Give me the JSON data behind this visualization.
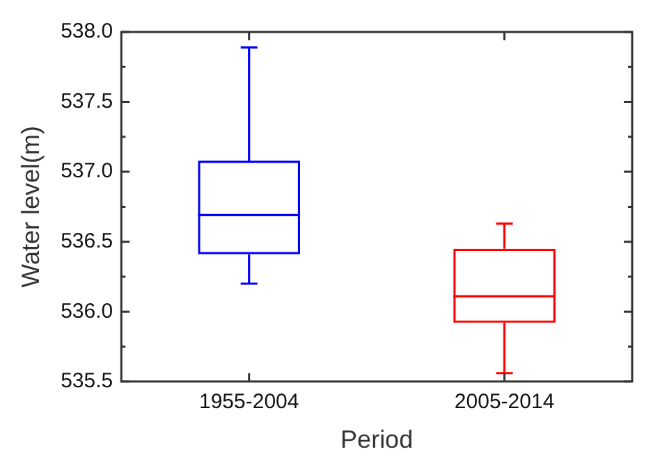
{
  "chart_data": {
    "type": "box",
    "xlabel": "Period",
    "ylabel": "Water level(m)",
    "categories": [
      "1955-2004",
      "2005-2014"
    ],
    "boxes": [
      {
        "low": 536.2,
        "q1": 536.41,
        "median": 536.69,
        "q3": 537.08,
        "high": 537.89
      },
      {
        "low": 535.56,
        "q1": 535.92,
        "median": 536.11,
        "q3": 536.45,
        "high": 536.63
      }
    ],
    "colors": [
      "#0000ff",
      "#ff0000"
    ],
    "ylim": [
      535.5,
      538.0
    ],
    "yticks": [
      {
        "value": 535.5,
        "label": "535.5"
      },
      {
        "value": 536.0,
        "label": "536.0"
      },
      {
        "value": 536.5,
        "label": "536.5"
      },
      {
        "value": 537.0,
        "label": "537.0"
      },
      {
        "value": 537.5,
        "label": "537.5"
      },
      {
        "value": 538.0,
        "label": "538.0"
      }
    ],
    "grid": false,
    "legend": false
  }
}
